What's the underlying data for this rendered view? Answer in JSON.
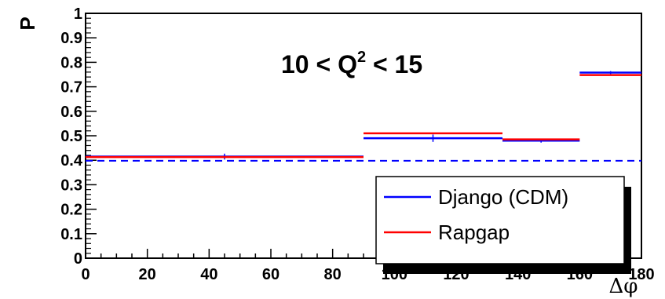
{
  "chart_data": {
    "type": "step",
    "title": "",
    "xlabel": "Δφ",
    "ylabel": "P",
    "xlim": [
      0,
      180
    ],
    "ylim": [
      0,
      1
    ],
    "x_ticks": [
      0,
      20,
      40,
      60,
      80,
      100,
      120,
      140,
      160,
      180
    ],
    "y_ticks": [
      0,
      0.1,
      0.2,
      0.3,
      0.4,
      0.5,
      0.6,
      0.7,
      0.8,
      0.9,
      1
    ],
    "y_tick_labels": [
      "0",
      "0.1",
      "0.2",
      "0.3",
      "0.4",
      "0.5",
      "0.6",
      "0.7",
      "0.8",
      "0.9",
      "1"
    ],
    "annotation": {
      "pre": "10 < Q",
      "sup": "2",
      "post": " < 15"
    },
    "bins": [
      {
        "lo": 0,
        "hi": 90
      },
      {
        "lo": 90,
        "hi": 135
      },
      {
        "lo": 135,
        "hi": 160
      },
      {
        "lo": 160,
        "hi": 180
      }
    ],
    "series": [
      {
        "name": "Django (CDM)",
        "color": "#0000ff",
        "values": [
          0.415,
          0.49,
          0.48,
          0.758
        ],
        "errors": [
          {
            "x": 45,
            "err": 0.012
          },
          {
            "x": 112.5,
            "err": 0.015
          },
          {
            "x": 147.5,
            "err": 0.008
          },
          {
            "x": 170,
            "err": 0.006
          }
        ]
      },
      {
        "name": "Rapgap",
        "color": "#ff0000",
        "values": [
          0.413,
          0.51,
          0.485,
          0.748
        ]
      }
    ],
    "reference_line": {
      "y": 0.398,
      "color": "#0000ff",
      "style": "dashed"
    },
    "grid": false,
    "legend_position": "bottom-right"
  }
}
